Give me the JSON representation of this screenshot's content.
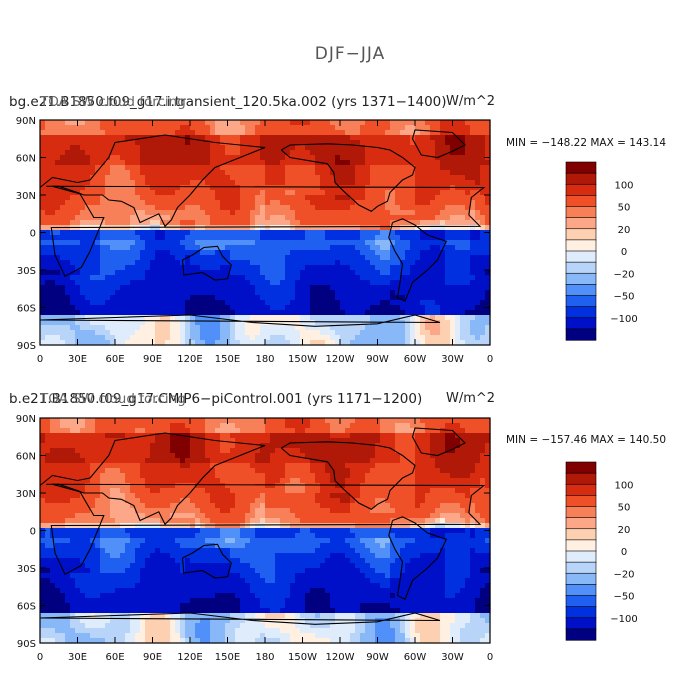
{
  "figure_title": "DJF−JJA",
  "chart_data": [
    {
      "type": "heatmap",
      "dataset": "bg.e21.B1850.f09_g17.i.transient_120.5ka.002 (yrs 1371−1400)",
      "variable": "TOA SW cloud forcing",
      "units": "W/m^2",
      "min_label": "MIN = −148.22",
      "max_label": "MAX = 143.14",
      "min": -148.22,
      "max": 143.14,
      "x_ticks": [
        "0",
        "30E",
        "60E",
        "90E",
        "120E",
        "150E",
        "180",
        "150W",
        "120W",
        "90W",
        "60W",
        "30W",
        "0"
      ],
      "y_ticks": [
        "90N",
        "60N",
        "30N",
        "0",
        "30S",
        "60S",
        "90S"
      ],
      "colorbar_labels": [
        "100",
        "50",
        "20",
        "0",
        "−20",
        "−50",
        "−100"
      ]
    },
    {
      "type": "heatmap",
      "dataset": "b.e21.B1850.f09_g17.CMIP6−piControl.001 (yrs 1171−1200)",
      "variable": "TOA SW cloud forcing",
      "units": "W/m^2",
      "min_label": "MIN = −157.46",
      "max_label": "MAX = 140.50",
      "min": -157.46,
      "max": 140.5,
      "x_ticks": [
        "0",
        "30E",
        "60E",
        "90E",
        "120E",
        "150E",
        "180",
        "150W",
        "120W",
        "90W",
        "60W",
        "30W",
        "0"
      ],
      "y_ticks": [
        "90N",
        "60N",
        "30N",
        "0",
        "30S",
        "60S",
        "90S"
      ],
      "colorbar_labels": [
        "100",
        "50",
        "20",
        "0",
        "−20",
        "−50",
        "−100"
      ]
    }
  ],
  "colors": {
    "levels": [
      "#000080",
      "#0010c8",
      "#0030e0",
      "#2060f0",
      "#5090f8",
      "#88b8f8",
      "#b8d4f8",
      "#deecfc",
      "#fff0e2",
      "#fdd0b2",
      "#fca888",
      "#f88058",
      "#f05028",
      "#d82c10",
      "#b01808",
      "#800000"
    ]
  }
}
